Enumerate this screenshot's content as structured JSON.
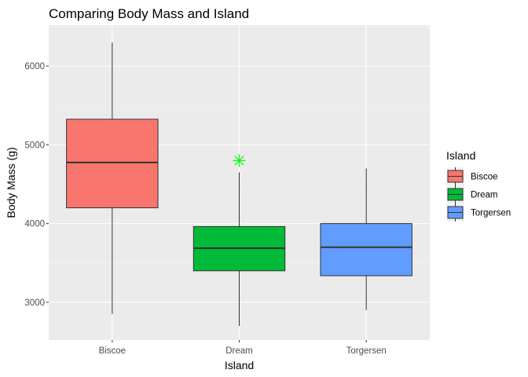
{
  "chart_data": {
    "type": "boxplot",
    "title": "Comparing Body Mass and Island",
    "xlabel": "Island",
    "ylabel": "Body Mass (g)",
    "categories": [
      "Biscoe",
      "Dream",
      "Torgersen"
    ],
    "yticks": [
      3000,
      4000,
      5000,
      6000
    ],
    "ylim": [
      2520,
      6520
    ],
    "boxes": [
      {
        "category": "Biscoe",
        "min": 2850,
        "q1": 4200,
        "median": 4775,
        "q3": 5325,
        "max": 6300,
        "outliers": [],
        "color": "#F8766D"
      },
      {
        "category": "Dream",
        "min": 2700,
        "q1": 3400,
        "median": 3687,
        "q3": 3962,
        "max": 4650,
        "outliers": [
          4800
        ],
        "color": "#00BA38"
      },
      {
        "category": "Torgersen",
        "min": 2900,
        "q1": 3337,
        "median": 3700,
        "q3": 4000,
        "max": 4700,
        "outliers": [],
        "color": "#619CFF"
      }
    ],
    "outlier_color": "#00FF00",
    "outlier_shape": "asterisk",
    "grid": true,
    "legend": {
      "title": "Island",
      "position": "right",
      "items": [
        {
          "label": "Biscoe",
          "color": "#F8766D"
        },
        {
          "label": "Dream",
          "color": "#00BA38"
        },
        {
          "label": "Torgersen",
          "color": "#619CFF"
        }
      ]
    }
  }
}
